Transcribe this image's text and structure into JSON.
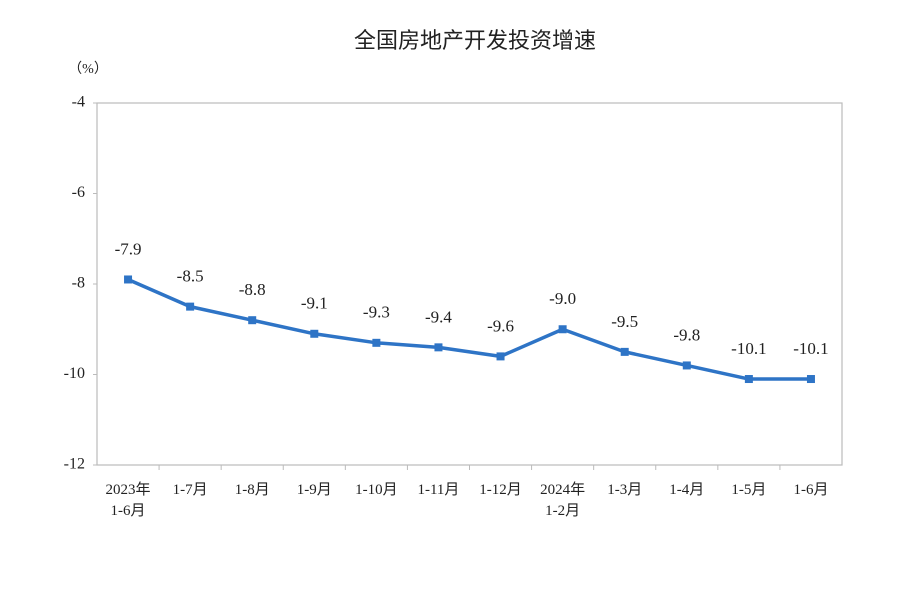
{
  "chart_data": {
    "type": "line",
    "title": "全国房地产开发投资增速",
    "y_label": "（%）",
    "categories": [
      "2023年\n1-6月",
      "1-7月",
      "1-8月",
      "1-9月",
      "1-10月",
      "1-11月",
      "1-12月",
      "2024年\n1-2月",
      "1-3月",
      "1-4月",
      "1-5月",
      "1-6月"
    ],
    "series": [
      {
        "name": "全国房地产开发投资增速",
        "color": "#2e74c6",
        "values": [
          -7.9,
          -8.5,
          -8.8,
          -9.1,
          -9.3,
          -9.4,
          -9.6,
          -9.0,
          -9.5,
          -9.8,
          -10.1,
          -10.1
        ],
        "value_labels": [
          "-7.9",
          "-8.5",
          "-8.8",
          "-9.1",
          "-9.3",
          "-9.4",
          "-9.6",
          "-9.0",
          "-9.5",
          "-9.8",
          "-10.1",
          "-10.1"
        ]
      }
    ],
    "ylim": [
      -12,
      -4
    ],
    "yticks": [
      -12,
      -10,
      -8,
      -6,
      -4
    ],
    "grid": false
  }
}
